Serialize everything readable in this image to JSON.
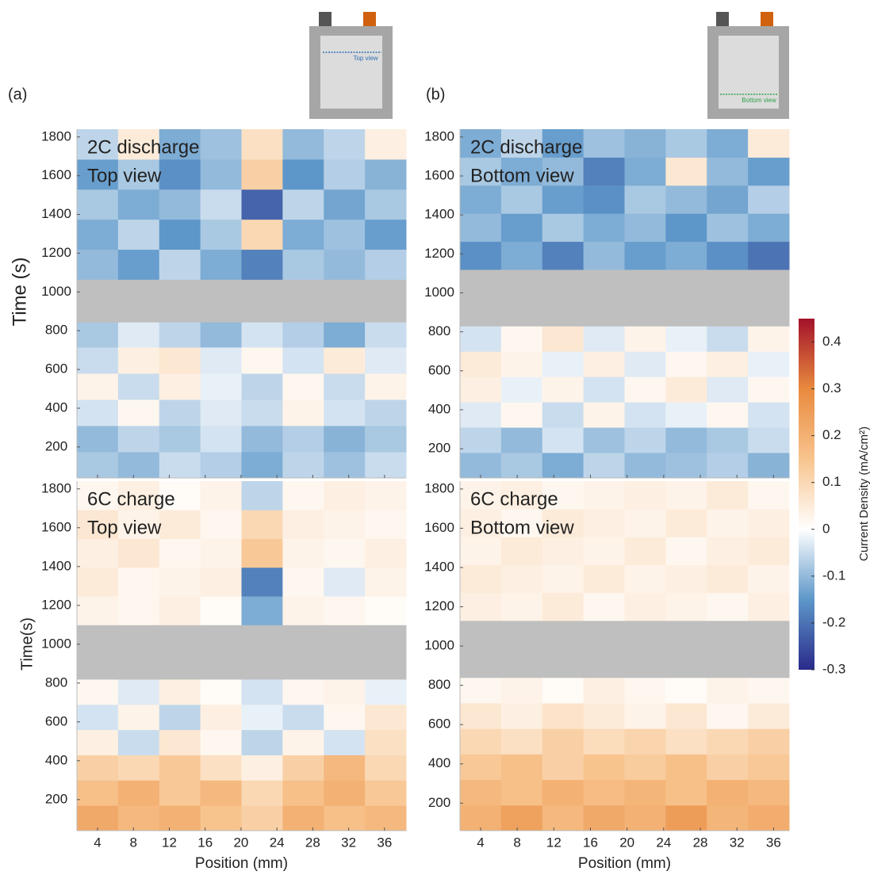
{
  "panel_labels": [
    "(a)",
    "(b)"
  ],
  "insets": [
    "Top view",
    "Bottom view"
  ],
  "colorbar": {
    "label": "Current Density (mA/cm²)",
    "clim": [
      -0.3,
      0.45
    ],
    "ticks": [
      -0.3,
      -0.2,
      -0.1,
      0,
      0.1,
      0.2,
      0.3,
      0.4
    ],
    "colormap": [
      "#2a2a8a",
      "#5d97c9",
      "#ffffff",
      "#f8c48e",
      "#e98a3e",
      "#a3122a"
    ]
  },
  "chart_data": [
    {
      "type": "heatmap",
      "title": [
        "2C discharge",
        "Top view"
      ],
      "ylabel": "Time (s)",
      "xtick_labels": false,
      "xlim": [
        1.7,
        38.4
      ],
      "ylim": [
        40,
        1840
      ],
      "xticks": [
        4,
        8,
        12,
        16,
        20,
        24,
        28,
        32,
        36
      ],
      "yticks": [
        200,
        400,
        600,
        800,
        1000,
        1200,
        1400,
        1600,
        1800
      ],
      "y_edges": [
        40,
        175,
        310,
        445,
        580,
        715,
        845,
        1065,
        1220,
        1375,
        1530,
        1685,
        1840
      ],
      "values": [
        [
          -0.08,
          -0.1,
          -0.05,
          -0.07,
          -0.12,
          -0.06,
          -0.09,
          -0.05
        ],
        [
          -0.1,
          -0.06,
          -0.08,
          -0.04,
          -0.1,
          -0.07,
          -0.11,
          -0.08
        ],
        [
          -0.04,
          0.02,
          -0.06,
          -0.03,
          -0.05,
          0.03,
          -0.04,
          -0.06
        ],
        [
          0.03,
          -0.05,
          0.04,
          -0.02,
          -0.06,
          0.02,
          -0.05,
          0.03
        ],
        [
          -0.05,
          0.04,
          0.06,
          -0.03,
          0.02,
          -0.04,
          0.05,
          -0.03
        ],
        [
          -0.08,
          -0.03,
          -0.06,
          -0.1,
          -0.04,
          -0.07,
          -0.12,
          -0.05
        ],
        [
          null,
          null,
          null,
          null,
          null,
          null,
          null,
          null
        ],
        [
          -0.1,
          -0.14,
          -0.06,
          -0.12,
          -0.18,
          -0.08,
          -0.1,
          -0.07
        ],
        [
          -0.12,
          -0.06,
          -0.15,
          -0.08,
          0.1,
          -0.12,
          -0.09,
          -0.14
        ],
        [
          -0.08,
          -0.12,
          -0.1,
          -0.05,
          -0.22,
          -0.06,
          -0.13,
          -0.08
        ],
        [
          -0.14,
          -0.08,
          -0.16,
          -0.1,
          0.12,
          -0.15,
          -0.07,
          -0.11
        ],
        [
          -0.06,
          0.05,
          -0.12,
          -0.09,
          0.08,
          -0.1,
          -0.06,
          0.04
        ]
      ]
    },
    {
      "type": "heatmap",
      "title": [
        "2C discharge",
        "Bottom view"
      ],
      "xtick_labels": false,
      "xlim": [
        1.75,
        37.7
      ],
      "ylim": [
        50,
        1840
      ],
      "xticks": [
        4,
        8,
        12,
        16,
        20,
        24,
        28,
        32,
        36
      ],
      "yticks": [
        200,
        400,
        600,
        800,
        1000,
        1200,
        1400,
        1600,
        1800
      ],
      "y_edges": [
        50,
        180,
        310,
        440,
        570,
        700,
        830,
        1120,
        1264,
        1408,
        1552,
        1696,
        1840
      ],
      "values": [
        [
          -0.1,
          -0.08,
          -0.12,
          -0.06,
          -0.1,
          -0.09,
          -0.07,
          -0.11
        ],
        [
          -0.06,
          -0.1,
          -0.04,
          -0.09,
          -0.06,
          -0.1,
          -0.08,
          -0.05
        ],
        [
          -0.03,
          0.02,
          -0.05,
          0.03,
          -0.04,
          -0.02,
          0.02,
          -0.04
        ],
        [
          0.04,
          -0.02,
          0.03,
          -0.04,
          0.02,
          0.05,
          -0.03,
          0.02
        ],
        [
          0.05,
          0.03,
          -0.02,
          0.04,
          -0.03,
          0.02,
          0.04,
          -0.02
        ],
        [
          -0.04,
          0.02,
          0.06,
          -0.03,
          0.03,
          -0.02,
          -0.05,
          0.03
        ],
        [
          null,
          null,
          null,
          null,
          null,
          null,
          null,
          null
        ],
        [
          -0.16,
          -0.12,
          -0.18,
          -0.1,
          -0.14,
          -0.12,
          -0.16,
          -0.2
        ],
        [
          -0.1,
          -0.14,
          -0.08,
          -0.12,
          -0.1,
          -0.15,
          -0.09,
          -0.12
        ],
        [
          -0.12,
          -0.08,
          -0.14,
          -0.16,
          -0.08,
          -0.1,
          -0.13,
          -0.07
        ],
        [
          -0.08,
          -0.12,
          -0.1,
          -0.18,
          -0.12,
          0.06,
          -0.1,
          -0.14
        ],
        [
          -0.12,
          -0.06,
          -0.14,
          -0.09,
          -0.11,
          -0.08,
          -0.12,
          0.05
        ]
      ]
    },
    {
      "type": "heatmap",
      "title": [
        "6C charge",
        "Top view"
      ],
      "ylabel": "Time(s)",
      "xlabel": "Position (mm)",
      "xtick_labels": true,
      "xlim": [
        1.7,
        38.4
      ],
      "ylim": [
        40,
        1840
      ],
      "xticks": [
        4,
        8,
        12,
        16,
        20,
        24,
        28,
        32,
        36
      ],
      "yticks": [
        200,
        400,
        600,
        800,
        1000,
        1200,
        1400,
        1600,
        1800
      ],
      "y_edges": [
        40,
        170,
        300,
        430,
        560,
        690,
        820,
        1100,
        1248,
        1396,
        1544,
        1692,
        1840
      ],
      "values": [
        [
          0.22,
          0.18,
          0.2,
          0.15,
          0.12,
          0.2,
          0.16,
          0.18
        ],
        [
          0.16,
          0.2,
          0.14,
          0.18,
          0.1,
          0.16,
          0.2,
          0.14
        ],
        [
          0.12,
          0.1,
          0.14,
          0.08,
          0.04,
          0.12,
          0.18,
          0.1
        ],
        [
          0.04,
          -0.05,
          0.06,
          0.02,
          -0.06,
          0.03,
          -0.04,
          0.08
        ],
        [
          -0.04,
          0.03,
          -0.06,
          0.04,
          -0.02,
          -0.05,
          0.02,
          0.06
        ],
        [
          0.02,
          -0.03,
          0.04,
          0.01,
          -0.04,
          0.02,
          0.03,
          -0.02
        ],
        [
          null,
          null,
          null,
          null,
          null,
          null,
          null,
          null
        ],
        [
          0.03,
          0.02,
          0.04,
          0.01,
          -0.12,
          0.03,
          0.02,
          0.01
        ],
        [
          0.05,
          0.02,
          0.03,
          0.04,
          -0.18,
          0.02,
          -0.03,
          0.03
        ],
        [
          0.04,
          0.06,
          0.02,
          0.03,
          0.14,
          0.03,
          0.02,
          0.04
        ],
        [
          0.06,
          0.03,
          0.05,
          0.02,
          0.1,
          0.04,
          0.03,
          0.02
        ],
        [
          0.02,
          0.04,
          0.01,
          0.03,
          -0.06,
          0.02,
          0.04,
          0.03
        ]
      ]
    },
    {
      "type": "heatmap",
      "title": [
        "6C charge",
        "Bottom view"
      ],
      "xlabel": "Position (mm)",
      "xtick_labels": true,
      "xlim": [
        1.75,
        37.7
      ],
      "ylim": [
        60,
        1840
      ],
      "xticks": [
        4,
        8,
        12,
        16,
        20,
        24,
        28,
        32,
        36
      ],
      "yticks": [
        200,
        400,
        600,
        800,
        1000,
        1200,
        1400,
        1600,
        1800
      ],
      "y_edges": [
        60,
        190,
        320,
        450,
        580,
        710,
        840,
        1130,
        1272,
        1414,
        1556,
        1698,
        1840
      ],
      "values": [
        [
          0.2,
          0.24,
          0.18,
          0.22,
          0.2,
          0.25,
          0.19,
          0.21
        ],
        [
          0.18,
          0.16,
          0.2,
          0.17,
          0.19,
          0.16,
          0.2,
          0.18
        ],
        [
          0.14,
          0.16,
          0.12,
          0.15,
          0.13,
          0.16,
          0.12,
          0.14
        ],
        [
          0.1,
          0.08,
          0.12,
          0.09,
          0.11,
          0.08,
          0.1,
          0.12
        ],
        [
          0.06,
          0.04,
          0.07,
          0.05,
          0.03,
          0.06,
          0.02,
          0.05
        ],
        [
          0.02,
          0.03,
          0.01,
          0.04,
          0.02,
          0.01,
          0.03,
          0.02
        ],
        [
          null,
          null,
          null,
          null,
          null,
          null,
          null,
          null
        ],
        [
          0.04,
          0.03,
          0.05,
          0.02,
          0.04,
          0.03,
          0.02,
          0.04
        ],
        [
          0.05,
          0.04,
          0.03,
          0.05,
          0.03,
          0.04,
          0.05,
          0.03
        ],
        [
          0.03,
          0.05,
          0.04,
          0.03,
          0.05,
          0.02,
          0.04,
          0.05
        ],
        [
          0.04,
          0.02,
          0.05,
          0.04,
          0.03,
          0.05,
          0.03,
          0.04
        ],
        [
          0.03,
          0.04,
          0.02,
          0.03,
          0.04,
          0.03,
          0.05,
          0.02
        ]
      ]
    }
  ]
}
